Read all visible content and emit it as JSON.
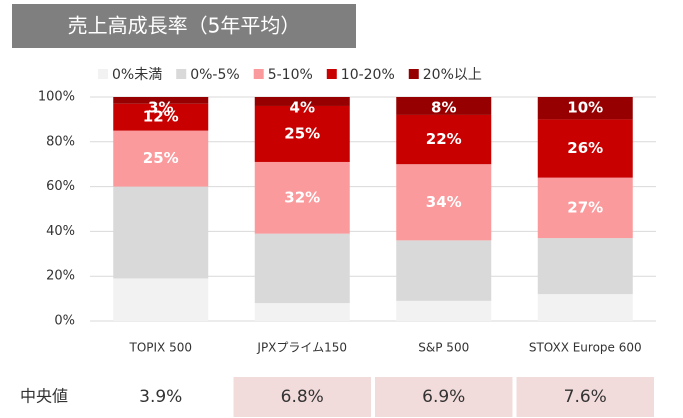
{
  "chart_data": {
    "type": "stacked_bar",
    "title": "売上高成長率（5年平均）",
    "categories": [
      "TOPIX 500",
      "JPXプライム150",
      "S&P 500",
      "STOXX Europe 600"
    ],
    "series": [
      {
        "name": "0%未満",
        "color": "#f2f2f2",
        "values": [
          19,
          8,
          9,
          12
        ]
      },
      {
        "name": "0%-5%",
        "color": "#d9d9d9",
        "values": [
          41,
          31,
          27,
          25
        ]
      },
      {
        "name": "5-10%",
        "color": "#fa9a9c",
        "values": [
          25,
          32,
          34,
          27
        ],
        "value_labels": [
          "25%",
          "32%",
          "34%",
          "27%"
        ]
      },
      {
        "name": "10-20%",
        "color": "#c80000",
        "values": [
          12,
          25,
          22,
          26
        ],
        "value_labels": [
          "12%",
          "25%",
          "22%",
          "26%"
        ]
      },
      {
        "name": "20%以上",
        "color": "#960000",
        "values": [
          3,
          4,
          8,
          10
        ],
        "value_labels": [
          "3%",
          "4%",
          "8%",
          "10%"
        ]
      }
    ],
    "ylim": [
      0,
      100
    ],
    "yticks": [
      {
        "value": 0,
        "label": "0%"
      },
      {
        "value": 20,
        "label": "20%"
      },
      {
        "value": 40,
        "label": "40%"
      },
      {
        "value": 60,
        "label": "60%"
      },
      {
        "value": 80,
        "label": "80%"
      },
      {
        "value": 100,
        "label": "100%"
      }
    ],
    "grid": true,
    "median": {
      "label": "中央値",
      "values": [
        3.9,
        6.8,
        6.9,
        7.6
      ],
      "value_labels": [
        "3.9%",
        "6.8%",
        "6.9%",
        "7.6%"
      ]
    }
  }
}
